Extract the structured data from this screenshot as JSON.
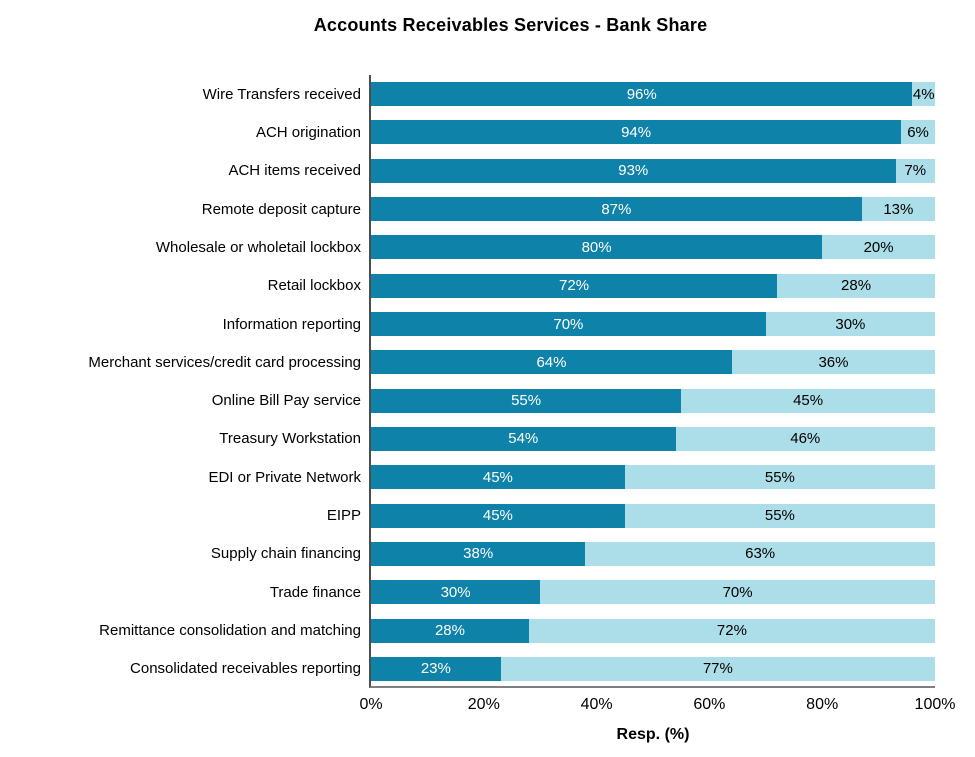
{
  "chart_data": {
    "type": "bar",
    "orientation": "horizontal",
    "stacked": true,
    "title": "Accounts Receivables Services - Bank Share",
    "xlabel": "Resp. (%)",
    "xlim": [
      0,
      100
    ],
    "x_tick_labels": [
      "0%",
      "20%",
      "40%",
      "60%",
      "80%",
      "100%"
    ],
    "grid": false,
    "legend": false,
    "categories": [
      "Wire Transfers received",
      "ACH origination",
      "ACH items received",
      "Remote deposit capture",
      "Wholesale or wholetail lockbox",
      "Retail lockbox",
      "Information reporting",
      "Merchant services/credit card processing",
      "Online Bill Pay service",
      "Treasury Workstation",
      "EDI or Private Network",
      "EIPP",
      "Supply chain financing",
      "Trade finance",
      "Remittance consolidation and matching",
      "Consolidated receivables reporting"
    ],
    "series": [
      {
        "name": "bank-share",
        "color": "#0E82A8",
        "values": [
          96,
          94,
          93,
          87,
          80,
          72,
          70,
          64,
          55,
          54,
          45,
          45,
          38,
          30,
          28,
          23
        ]
      },
      {
        "name": "remainder",
        "color": "#ACDEE9",
        "values": [
          4,
          6,
          7,
          13,
          20,
          28,
          30,
          36,
          45,
          46,
          55,
          55,
          63,
          70,
          72,
          77
        ]
      }
    ],
    "data_label_format": "{value}%",
    "axis_line_color": "#595959"
  }
}
